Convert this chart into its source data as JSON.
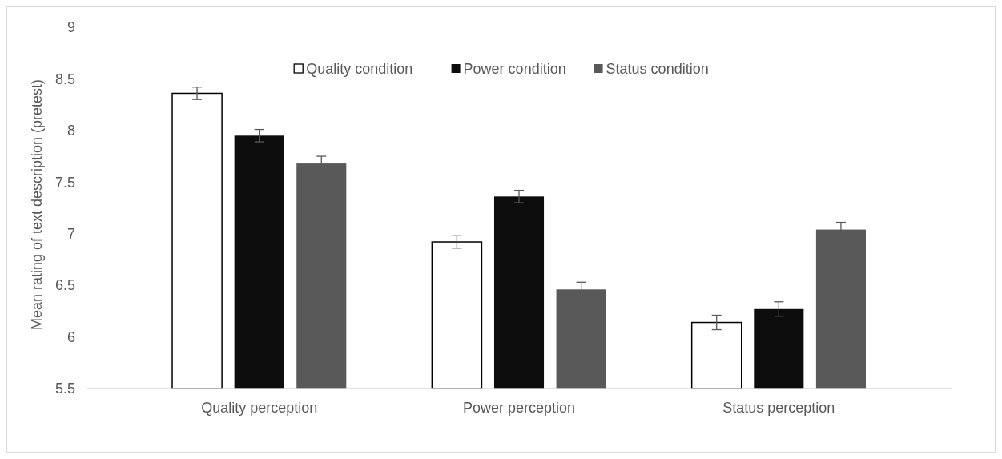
{
  "chart_data": {
    "type": "bar",
    "ylabel": "Mean rating of text description (pretest)",
    "categories": [
      "Quality perception",
      "Power perception",
      "Status perception"
    ],
    "series": [
      {
        "name": "Quality condition",
        "color": "#ffffff",
        "values": [
          8.36,
          6.92,
          6.14
        ],
        "errors": [
          0.06,
          0.06,
          0.07
        ]
      },
      {
        "name": "Power condition",
        "color": "#0d0d0d",
        "values": [
          7.95,
          7.36,
          6.27
        ],
        "errors": [
          0.06,
          0.06,
          0.07
        ]
      },
      {
        "name": "Status condition",
        "color": "#595959",
        "values": [
          7.68,
          6.46,
          7.04
        ],
        "errors": [
          0.07,
          0.07,
          0.07
        ]
      }
    ],
    "ylim": [
      5.5,
      9
    ],
    "yticks": [
      5.5,
      6,
      6.5,
      7,
      7.5,
      8,
      8.5,
      9
    ],
    "grid": false,
    "legend": "top"
  }
}
